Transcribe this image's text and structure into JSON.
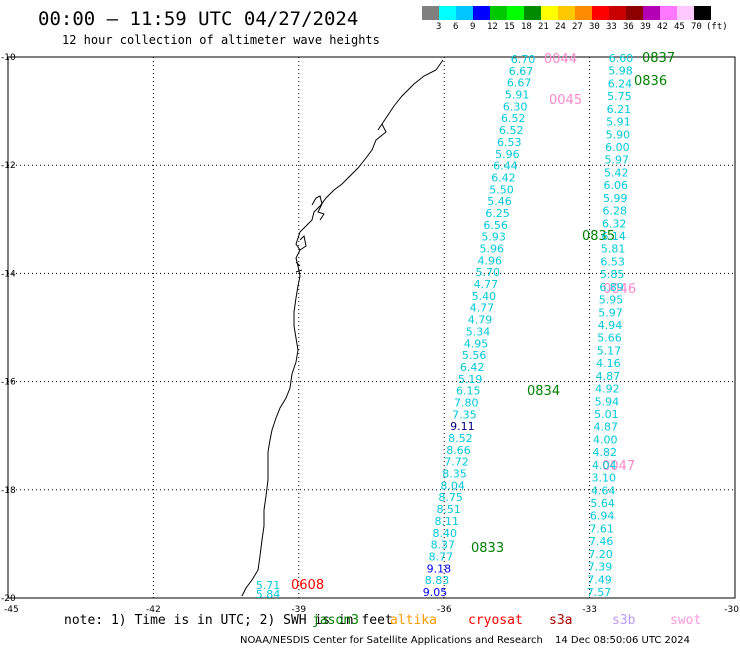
{
  "header": {
    "title": "00:00 – 11:59 UTC 04/27/2024",
    "subtitle": "12 hour collection of altimeter wave heights"
  },
  "legend": {
    "colors": [
      "#7f7f7f",
      "#00ffff",
      "#00c8ff",
      "#0000ff",
      "#00c800",
      "#00ff00",
      "#008c00",
      "#ffff00",
      "#ffc800",
      "#ff8c00",
      "#ff0000",
      "#c80000",
      "#8c0000",
      "#b400b4",
      "#ff78ff",
      "#ffc8ff",
      "#000000"
    ],
    "labels": [
      "3",
      "6",
      "9",
      "12",
      "15",
      "18",
      "21",
      "24",
      "27",
      "30",
      "33",
      "36",
      "39",
      "42",
      "45",
      "70",
      "(ft)"
    ]
  },
  "axes": {
    "x_ticks": [
      "-45",
      "-42",
      "-39",
      "-36",
      "-33",
      "-30"
    ],
    "y_ticks": [
      "-10",
      "-12",
      "-14",
      "-16",
      "-18",
      "-20"
    ]
  },
  "pass_labels": [
    {
      "text": "0837",
      "color": "#008000"
    },
    {
      "text": "0836",
      "color": "#008000"
    },
    {
      "text": "0044",
      "color": "#ff88cc"
    },
    {
      "text": "0045",
      "color": "#ff88cc"
    },
    {
      "text": "0835",
      "color": "#008000"
    },
    {
      "text": "0046",
      "color": "#ff88cc"
    },
    {
      "text": "0834",
      "color": "#008000"
    },
    {
      "text": "0047",
      "color": "#ff88cc"
    },
    {
      "text": "0833",
      "color": "#008000"
    },
    {
      "text": "0608",
      "color": "#ff0000"
    }
  ],
  "track_a": [
    "6.70",
    "6.67",
    "6.67",
    "5.91",
    "6.30",
    "6.52",
    "6.52",
    "6.53",
    "5.96",
    "6.44",
    "6.42",
    "5.50",
    "5.46",
    "6.25",
    "6.56",
    "5.93",
    "5.96",
    "4.96",
    "5.70",
    "4.77",
    "5.40",
    "4.77",
    "4.79",
    "5.34",
    "4.95",
    "5.56",
    "6.42",
    "5.19",
    "6.15",
    "7.80",
    "7.35",
    "9.11",
    "8.52",
    "8.66",
    "7.72",
    "8.35",
    "8.04",
    "8.75",
    "8.51",
    "8.11",
    "8.40",
    "8.37",
    "8.77",
    "9.18",
    "8.83",
    "9.05"
  ],
  "track_a_colors": {
    "9.11": "#000080",
    "9.18": "#0000ff",
    "9.05": "#0000ff"
  },
  "track_b": [
    "6.60",
    "5.98",
    "6.24",
    "5.75",
    "6.21",
    "5.91",
    "5.90",
    "6.00",
    "5.97",
    "5.42",
    "6.06",
    "5.99",
    "6.28",
    "6.32",
    "6.14",
    "5.81",
    "6.53",
    "5.85",
    "6.89",
    "5.95",
    "5.97",
    "4.94",
    "5.66",
    "5.17",
    "4.16",
    "4.87",
    "4.92",
    "5.94",
    "5.01",
    "4.87",
    "4.00",
    "4.82",
    "4.04",
    "3.10",
    "4.64",
    "5.64",
    "6.94",
    "7.61",
    "7.46",
    "7.20",
    "7.39",
    "7.49",
    "7.57"
  ],
  "track_c": [
    "5.71",
    "5.84"
  ],
  "note": {
    "prefix": "note: 1) Time is in UTC; 2) SWH is in feet",
    "satellites": [
      {
        "name": "jason3",
        "color": "#008000"
      },
      {
        "name": "altika",
        "color": "#ff9900"
      },
      {
        "name": "cryosat",
        "color": "#ff0000"
      },
      {
        "name": "s3a",
        "color": "#aa0000"
      },
      {
        "name": "s3b",
        "color": "#bb99ff"
      },
      {
        "name": "swot",
        "color": "#ff99dd"
      }
    ]
  },
  "footer": {
    "left": "NOAA/NESDIS Center for Satellite Applications and Research",
    "right": "14 Dec 08:50:06 UTC 2024"
  }
}
